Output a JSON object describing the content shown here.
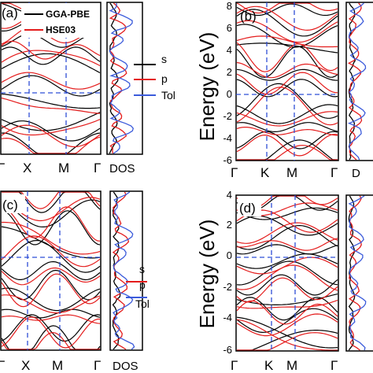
{
  "colors": {
    "gga": "#000000",
    "hse": "#e41c1c",
    "s": "#000000",
    "p": "#e41c1c",
    "tol": "#3b5bdb",
    "dash": "#2f4fd6"
  },
  "legend": {
    "gga": "GGA-PBE",
    "hse": "HSE03"
  },
  "dos_legend": {
    "s": "s",
    "p": "p",
    "tol": "Tol"
  },
  "axis_label": "Energy (eV)",
  "dos_label": "DOS",
  "panels": [
    {
      "id": "a",
      "label": "(a)",
      "kpoints": [
        "Γ",
        "X",
        "M",
        "Γ"
      ],
      "energy_ticks": [],
      "show_dos_label": true,
      "show_dos_legend": true,
      "show_band_legend": true
    },
    {
      "id": "b",
      "label": "(b)",
      "kpoints": [
        "Γ",
        "K",
        "M",
        "Γ"
      ],
      "energy_ticks": [
        "8",
        "6",
        "4",
        "2",
        "0",
        "-2",
        "-4",
        "-6"
      ],
      "show_dos_label": true,
      "dos_label_text": "D",
      "show_dos_legend": false,
      "show_band_legend": false
    },
    {
      "id": "c",
      "label": "(c)",
      "kpoints": [
        "Γ",
        "X",
        "M",
        "Γ"
      ],
      "energy_ticks": [],
      "show_dos_label": true,
      "show_dos_legend": true,
      "show_band_legend": false
    },
    {
      "id": "d",
      "label": "(d)",
      "kpoints": [
        "Γ",
        "K",
        "M",
        "Γ"
      ],
      "energy_ticks": [
        "4",
        "2",
        "0",
        "-2",
        "-4",
        "-6"
      ],
      "show_dos_label": false,
      "show_dos_legend": false,
      "show_band_legend": false
    }
  ]
}
